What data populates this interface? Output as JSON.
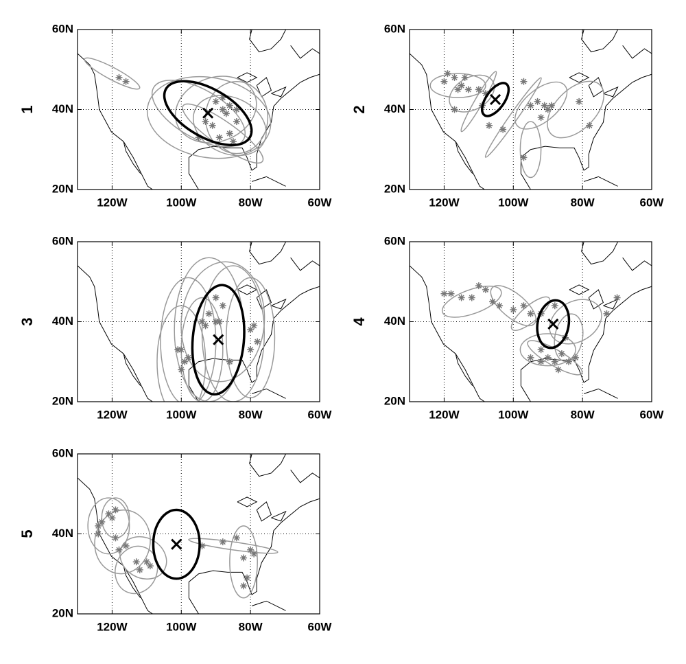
{
  "chart_data": [
    {
      "type": "scatter",
      "title": "1",
      "xlim": [
        -130,
        -60
      ],
      "ylim": [
        20,
        60
      ],
      "grid": true,
      "color": "#777777",
      "xticks": [
        {
          "value": -120,
          "label": "120W"
        },
        {
          "value": -100,
          "label": "100W"
        },
        {
          "value": -80,
          "label": "80W"
        },
        {
          "value": -60,
          "label": "60W"
        }
      ],
      "yticks": [
        {
          "value": 20,
          "label": "20N"
        },
        {
          "value": 40,
          "label": "40N"
        },
        {
          "value": 60,
          "label": "60N"
        }
      ],
      "x": [
        -118,
        -116,
        -93,
        -91,
        -88,
        -87,
        -86,
        -89,
        -86,
        -84,
        -85,
        -88,
        -90,
        -95,
        -84
      ],
      "values": [
        48,
        47,
        37,
        36,
        40,
        39,
        41,
        33,
        34,
        37,
        32,
        43,
        42,
        33,
        40
      ],
      "ellipses": [
        {
          "x": -120,
          "y": 49,
          "rx": 9,
          "ry": 1.5,
          "angle": 28
        },
        {
          "x": -92,
          "y": 38,
          "rx": 18,
          "ry": 10,
          "angle": 10
        },
        {
          "x": -90,
          "y": 40,
          "rx": 12,
          "ry": 8,
          "angle": -20
        },
        {
          "x": -86,
          "y": 36,
          "rx": 11,
          "ry": 7,
          "angle": 25
        },
        {
          "x": -95,
          "y": 39,
          "rx": 15,
          "ry": 6,
          "angle": 30
        },
        {
          "x": -84,
          "y": 38,
          "rx": 9,
          "ry": 9,
          "angle": 0
        },
        {
          "x": -88,
          "y": 34,
          "rx": 14,
          "ry": 3,
          "angle": 35
        }
      ],
      "mean": {
        "x": -92.3,
        "y": 39.1,
        "rx": 14,
        "ry": 6,
        "angle": 30
      }
    },
    {
      "type": "scatter",
      "title": "2",
      "xlim": [
        -130,
        -60
      ],
      "ylim": [
        20,
        60
      ],
      "grid": true,
      "color": "#777777",
      "xticks": [
        {
          "value": -120,
          "label": "120W"
        },
        {
          "value": -100,
          "label": "100W"
        },
        {
          "value": -80,
          "label": "80W"
        },
        {
          "value": -60,
          "label": "60W"
        }
      ],
      "yticks": [
        {
          "value": 20,
          "label": "20N"
        },
        {
          "value": 40,
          "label": "40N"
        },
        {
          "value": 60,
          "label": "60N"
        }
      ],
      "x": [
        -120,
        -119,
        -117,
        -115,
        -114,
        -116,
        -113,
        -117,
        -110,
        -108,
        -109,
        -107,
        -103,
        -97,
        -95,
        -93,
        -91,
        -90,
        -89,
        -92,
        -97,
        -81,
        -78
      ],
      "values": [
        47,
        49,
        48,
        46,
        48,
        45,
        45,
        40,
        45,
        44,
        41,
        36,
        35,
        47,
        41,
        42,
        41,
        40,
        41,
        38,
        28,
        42,
        36
      ],
      "ellipses": [
        {
          "x": -116,
          "y": 46,
          "rx": 8,
          "ry": 3,
          "angle": 0
        },
        {
          "x": -110,
          "y": 42,
          "rx": 10,
          "ry": 1,
          "angle": -60
        },
        {
          "x": -100,
          "y": 38,
          "rx": 14,
          "ry": 1,
          "angle": -55
        },
        {
          "x": -92,
          "y": 41,
          "rx": 9,
          "ry": 4,
          "angle": -40
        },
        {
          "x": -95,
          "y": 30,
          "rx": 3,
          "ry": 7,
          "angle": 0
        },
        {
          "x": -82,
          "y": 40,
          "rx": 10,
          "ry": 5,
          "angle": -45
        },
        {
          "x": -112,
          "y": 44,
          "rx": 7,
          "ry": 4,
          "angle": -30
        }
      ],
      "mean": {
        "x": -105.2,
        "y": 42.5,
        "rx": 5.5,
        "ry": 2.3,
        "angle": -55
      }
    },
    {
      "type": "scatter",
      "title": "3",
      "xlim": [
        -130,
        -60
      ],
      "ylim": [
        20,
        60
      ],
      "grid": true,
      "color": "#777777",
      "xticks": [
        {
          "value": -120,
          "label": "120W"
        },
        {
          "value": -100,
          "label": "100W"
        },
        {
          "value": -80,
          "label": "80W"
        },
        {
          "value": -60,
          "label": "60W"
        }
      ],
      "yticks": [
        {
          "value": 20,
          "label": "20N"
        },
        {
          "value": 40,
          "label": "40N"
        },
        {
          "value": 60,
          "label": "60N"
        }
      ],
      "x": [
        -100,
        -99,
        -98,
        -101,
        -100,
        -93,
        -92,
        -90,
        -89,
        -94,
        -86,
        -80,
        -79,
        -80,
        -78,
        -88,
        -90
      ],
      "values": [
        33,
        30,
        31,
        33,
        28,
        39,
        42,
        40,
        40,
        40,
        30,
        38,
        39,
        33,
        35,
        44,
        46
      ],
      "ellipses": [
        {
          "x": -98,
          "y": 35,
          "rx": 8,
          "ry": 16,
          "angle": 0
        },
        {
          "x": -92,
          "y": 38,
          "rx": 10,
          "ry": 18,
          "angle": 0
        },
        {
          "x": -85,
          "y": 37,
          "rx": 9,
          "ry": 17,
          "angle": 0
        },
        {
          "x": -80,
          "y": 36,
          "rx": 7,
          "ry": 15,
          "angle": 0
        },
        {
          "x": -100,
          "y": 30,
          "rx": 7,
          "ry": 14,
          "angle": 0
        },
        {
          "x": -88,
          "y": 40,
          "rx": 12,
          "ry": 15,
          "angle": 5
        },
        {
          "x": -94,
          "y": 33,
          "rx": 6,
          "ry": 13,
          "angle": 0
        }
      ],
      "mean": {
        "x": -89.3,
        "y": 35.5,
        "rx": 7.4,
        "ry": 13.7,
        "angle": 5
      }
    },
    {
      "type": "scatter",
      "title": "4",
      "xlim": [
        -130,
        -60
      ],
      "ylim": [
        20,
        60
      ],
      "grid": true,
      "color": "#777777",
      "xticks": [
        {
          "value": -120,
          "label": "120W"
        },
        {
          "value": -100,
          "label": "100W"
        },
        {
          "value": -80,
          "label": "80W"
        },
        {
          "value": -60,
          "label": "60W"
        }
      ],
      "yticks": [
        {
          "value": 20,
          "label": "20N"
        },
        {
          "value": 40,
          "label": "40N"
        },
        {
          "value": 60,
          "label": "60N"
        }
      ],
      "x": [
        -120,
        -118,
        -115,
        -112,
        -110,
        -108,
        -106,
        -104,
        -100,
        -97,
        -95,
        -92,
        -88,
        -70,
        -73,
        -85,
        -92,
        -90,
        -88,
        -86,
        -84,
        -82,
        -92,
        -95,
        -87
      ],
      "values": [
        47,
        47,
        46,
        46,
        49,
        48,
        45,
        44,
        43,
        44,
        42,
        42,
        44,
        46,
        42,
        36,
        33,
        31,
        30,
        32,
        30,
        31,
        30,
        31,
        28
      ],
      "ellipses": [
        {
          "x": -112,
          "y": 45,
          "rx": 9,
          "ry": 3,
          "angle": -20
        },
        {
          "x": -100,
          "y": 44,
          "rx": 8,
          "ry": 3,
          "angle": 40
        },
        {
          "x": -90,
          "y": 33,
          "rx": 8,
          "ry": 4,
          "angle": 0
        },
        {
          "x": -88,
          "y": 31,
          "rx": 9,
          "ry": 2,
          "angle": 30
        },
        {
          "x": -82,
          "y": 40,
          "rx": 8,
          "ry": 5,
          "angle": -30
        },
        {
          "x": -95,
          "y": 42,
          "rx": 7,
          "ry": 2,
          "angle": -40
        },
        {
          "x": -84,
          "y": 36,
          "rx": 4,
          "ry": 6,
          "angle": 10
        }
      ],
      "mean": {
        "x": -88.5,
        "y": 39.4,
        "rx": 4.5,
        "ry": 6,
        "angle": 10
      }
    },
    {
      "type": "scatter",
      "title": "5",
      "xlim": [
        -130,
        -60
      ],
      "ylim": [
        20,
        60
      ],
      "grid": true,
      "color": "#777777",
      "xticks": [
        {
          "value": -120,
          "label": "120W"
        },
        {
          "value": -100,
          "label": "100W"
        },
        {
          "value": -80,
          "label": "80W"
        },
        {
          "value": -60,
          "label": "60W"
        }
      ],
      "yticks": [
        {
          "value": 20,
          "label": "20N"
        },
        {
          "value": 40,
          "label": "40N"
        },
        {
          "value": 60,
          "label": "60N"
        }
      ],
      "x": [
        -124,
        -123,
        -121,
        -119,
        -120,
        -119,
        -124,
        -118,
        -116,
        -113,
        -112,
        -110,
        -109,
        -94,
        -88,
        -84,
        -82,
        -80,
        -79,
        -81,
        -82
      ],
      "values": [
        42,
        43,
        45,
        46,
        44,
        39,
        40,
        36,
        37,
        33,
        31,
        33,
        32,
        37,
        38,
        39,
        34,
        36,
        35,
        29,
        27
      ],
      "ellipses": [
        {
          "x": -121,
          "y": 42,
          "rx": 6,
          "ry": 7,
          "angle": 0
        },
        {
          "x": -117,
          "y": 38,
          "rx": 8,
          "ry": 8,
          "angle": 10
        },
        {
          "x": -113,
          "y": 31,
          "rx": 6,
          "ry": 6,
          "angle": 20
        },
        {
          "x": -119,
          "y": 44,
          "rx": 4,
          "ry": 5,
          "angle": 0
        },
        {
          "x": -85,
          "y": 37,
          "rx": 13,
          "ry": 1,
          "angle": 8
        },
        {
          "x": -82,
          "y": 33,
          "rx": 4,
          "ry": 9,
          "angle": 0
        },
        {
          "x": -111,
          "y": 34,
          "rx": 7,
          "ry": 5,
          "angle": 30
        }
      ],
      "mean": {
        "x": -101.4,
        "y": 37.4,
        "rx": 6.7,
        "ry": 8.6,
        "angle": 0
      }
    }
  ]
}
